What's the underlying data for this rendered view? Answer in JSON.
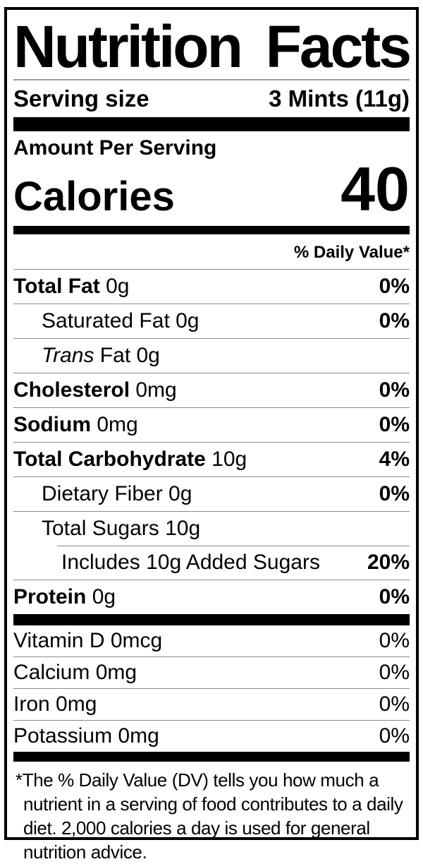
{
  "label": {
    "title": "Nutrition Facts",
    "serving": {
      "label": "Serving size",
      "value": "3 Mints (11g)"
    },
    "amount_per_serving": "Amount Per Serving",
    "calories": {
      "label": "Calories",
      "value": "40"
    },
    "daily_value_header": "% Daily Value*",
    "nutrients": [
      {
        "bold": "Total Fat",
        "rest": " 0g",
        "dv": "0%",
        "dv_bold": true,
        "indent": 0
      },
      {
        "rest": "Saturated Fat 0g",
        "dv": "0%",
        "dv_bold": true,
        "indent": 1
      },
      {
        "italic": "Trans",
        "rest": " Fat 0g",
        "dv": "",
        "indent": 1
      },
      {
        "bold": "Cholesterol",
        "rest": " 0mg",
        "dv": "0%",
        "dv_bold": true,
        "indent": 0
      },
      {
        "bold": "Sodium",
        "rest": " 0mg",
        "dv": "0%",
        "dv_bold": true,
        "indent": 0
      },
      {
        "bold": "Total Carbohydrate",
        "rest": " 10g",
        "dv": "4%",
        "dv_bold": true,
        "indent": 0
      },
      {
        "rest": "Dietary Fiber 0g",
        "dv": "0%",
        "dv_bold": true,
        "indent": 1
      },
      {
        "rest": "Total Sugars 10g",
        "dv": "",
        "indent": 1
      },
      {
        "rest": "Includes 10g Added Sugars",
        "dv": "20%",
        "dv_bold": true,
        "indent": 2,
        "divider_indent": true
      },
      {
        "bold": "Protein",
        "rest": " 0g",
        "dv": "0%",
        "dv_bold": true,
        "indent": 0
      }
    ],
    "vitamins": [
      {
        "name": "Vitamin D 0mcg",
        "dv": "0%"
      },
      {
        "name": "Calcium 0mg",
        "dv": "0%"
      },
      {
        "name": "Iron 0mg",
        "dv": "0%"
      },
      {
        "name": "Potassium 0mg",
        "dv": "0%"
      }
    ],
    "footnote": "*The % Daily Value (DV) tells you how much a nutrient in a serving of food contributes to a daily diet. 2,000 calories a day is used for general nutrition advice.",
    "colors": {
      "background": "#ffffff",
      "text": "#000000",
      "bar": "#000000",
      "divider": "#8a8a8a"
    }
  }
}
